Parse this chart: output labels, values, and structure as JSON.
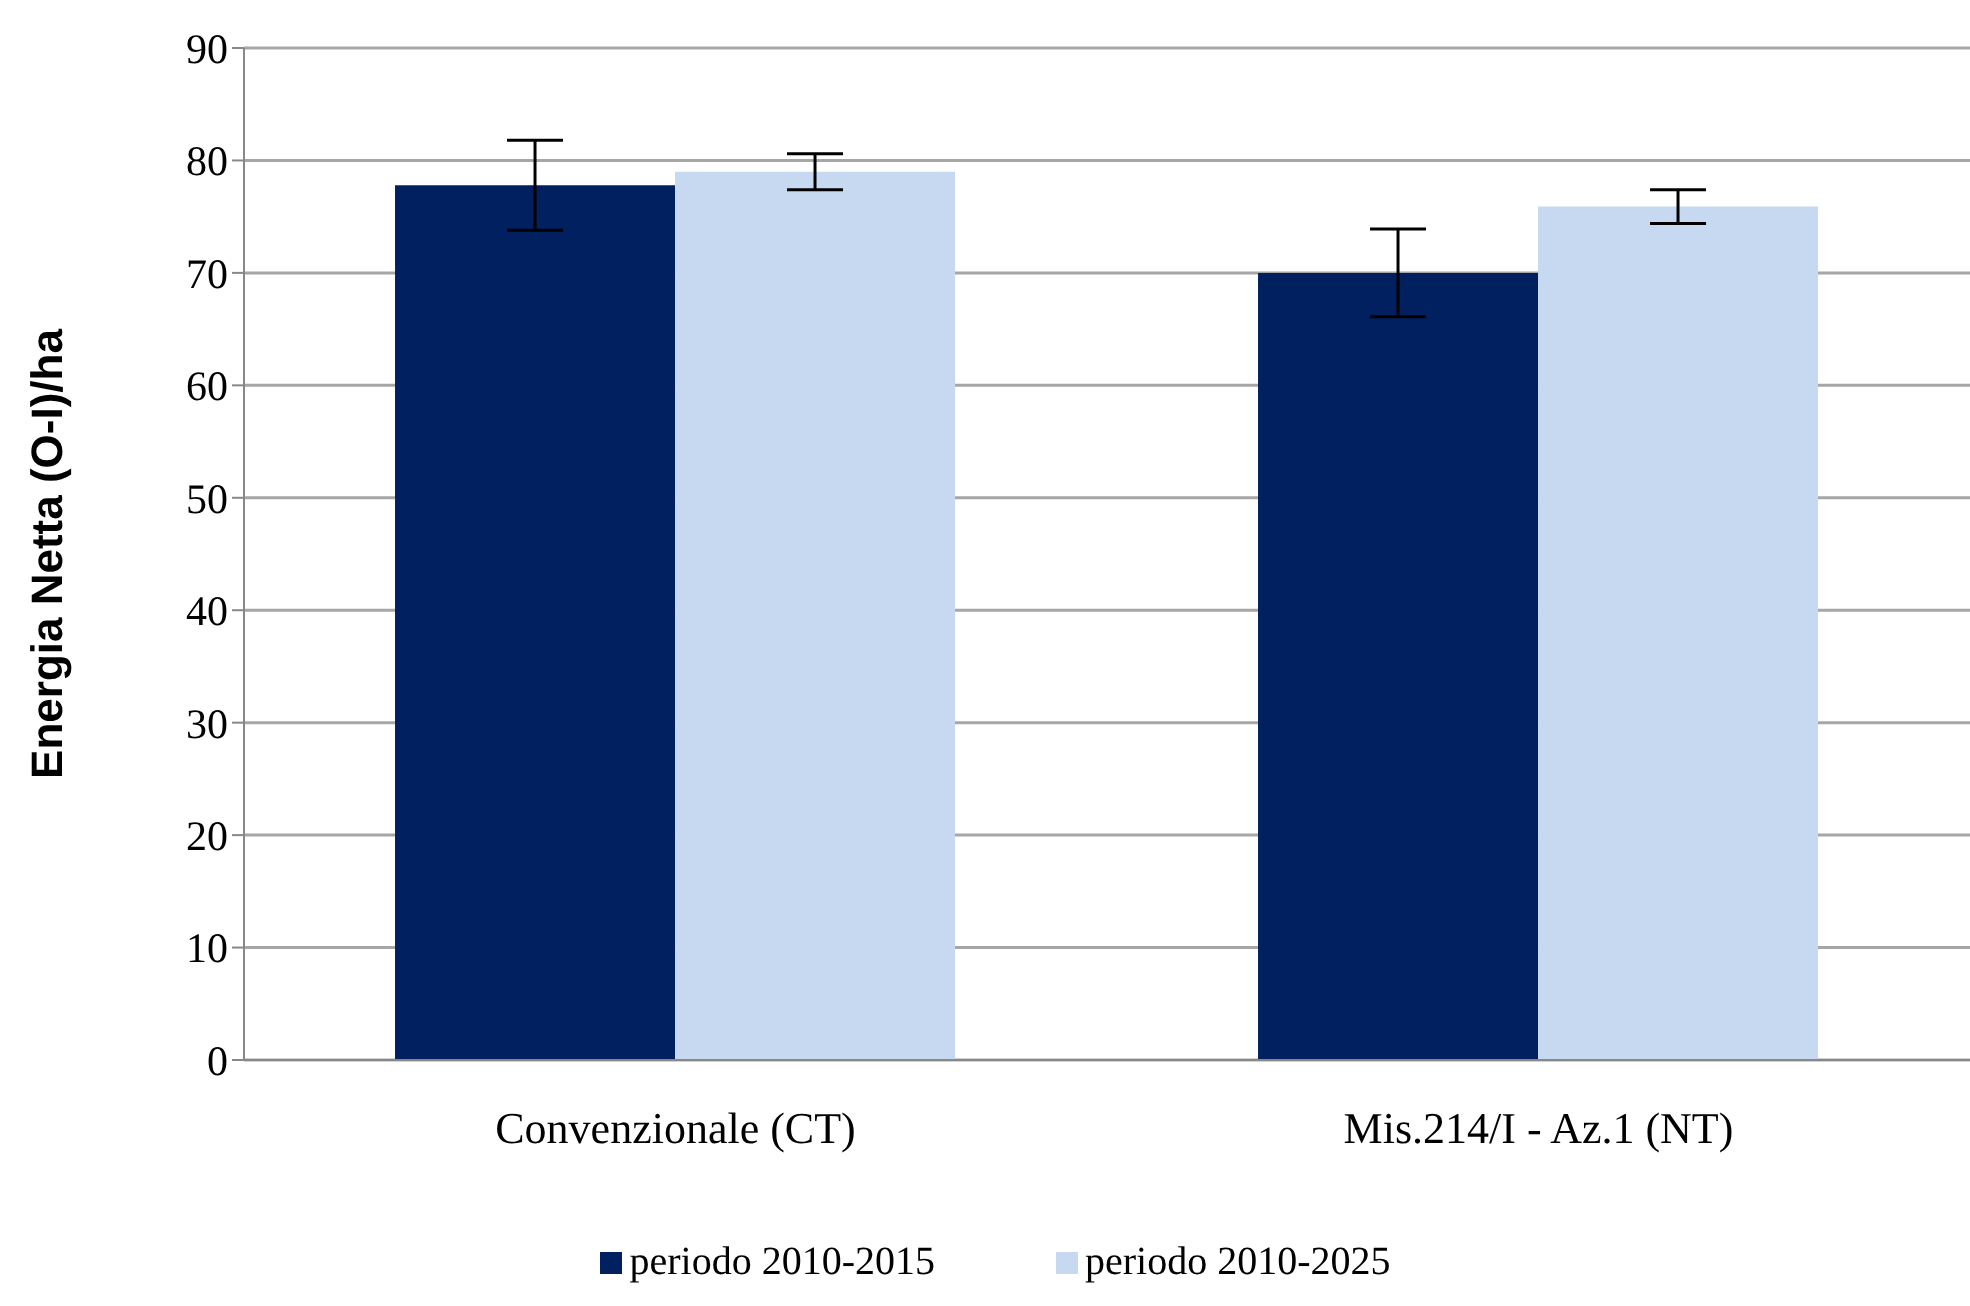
{
  "chart_data": {
    "type": "bar",
    "ylabel": "Energia Netta (O-I)/ha",
    "categories": [
      "Convenzionale (CT)",
      "Mis.214/I - Az.1 (NT)"
    ],
    "series": [
      {
        "name": "periodo 2010-2015",
        "color": "#002060",
        "values": [
          77.8,
          70.0
        ],
        "errors": [
          4.0,
          3.9
        ]
      },
      {
        "name": "periodo 2010-2025",
        "color": "#c6d9f1",
        "values": [
          79.0,
          75.9
        ],
        "errors": [
          1.6,
          1.5
        ]
      }
    ],
    "ylim": [
      0,
      90
    ],
    "yticks": [
      0,
      10,
      20,
      30,
      40,
      50,
      60,
      70,
      80,
      90
    ],
    "grid": "y",
    "legend": "bottom"
  }
}
